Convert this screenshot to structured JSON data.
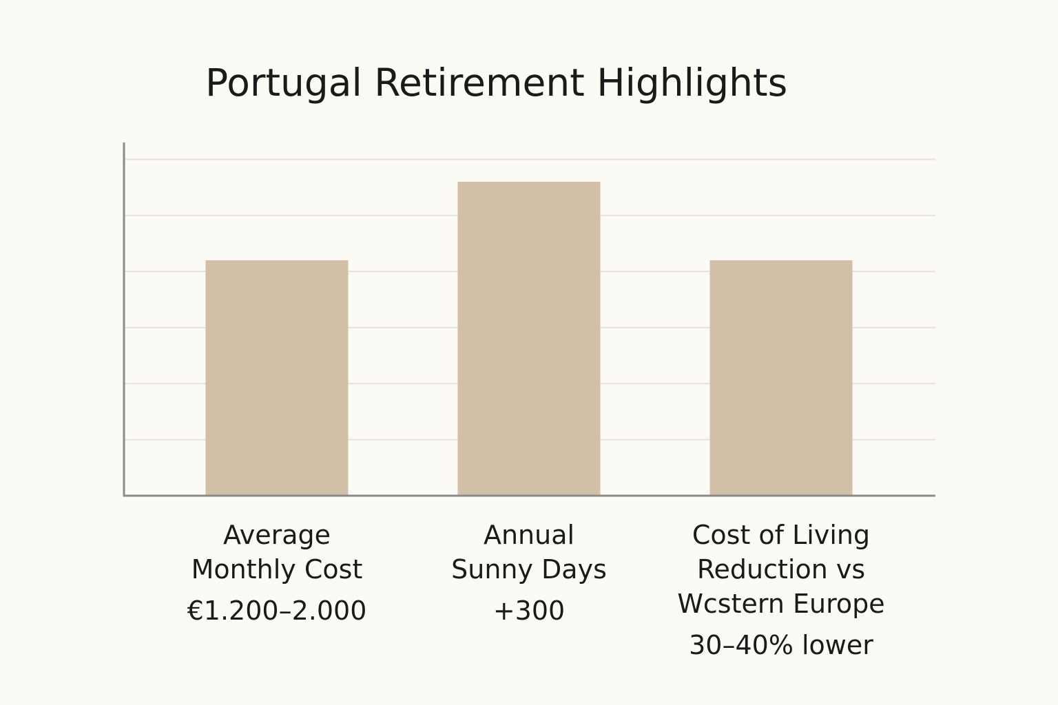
{
  "chart_data": {
    "type": "bar",
    "title": "Portugal Retirement Highlights",
    "xlabel": "",
    "ylabel": "",
    "categories": [
      {
        "lines": [
          "Average",
          "Monthly Cost"
        ],
        "value_label": "€1.200–2.000"
      },
      {
        "lines": [
          "Annual",
          "Sunny Days"
        ],
        "value_label": "+300"
      },
      {
        "lines": [
          "Cost of Living",
          "Reduction vs",
          "Wcstern Europe"
        ],
        "value_label": "30–40% lower"
      }
    ],
    "values": [
      4.2,
      5.6,
      4.2
    ],
    "ylim": [
      0,
      6.3
    ],
    "y_gridlines": [
      1,
      2,
      3,
      4,
      5,
      6
    ],
    "y_tick_labels_shown": false,
    "grid": true,
    "legend": "none",
    "colors": {
      "bar": "#d2bfa8",
      "gridline": "#e6e3dc",
      "axis": "#8a8a8a",
      "text": "#1a1a1a",
      "background": "#fcfaf5"
    }
  }
}
